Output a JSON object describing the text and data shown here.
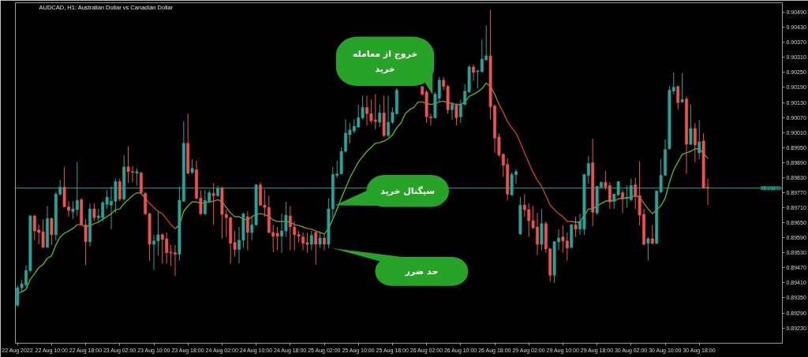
{
  "chart_data": {
    "type": "candlestick",
    "title": "AUDCAD, H1: Australian Dollar vs Canadian Dollar",
    "categories": [
      "22 Aug 2022",
      null,
      null,
      null,
      null,
      null,
      null,
      null,
      "22 Aug 10:00",
      null,
      null,
      null,
      null,
      null,
      null,
      null,
      "22 Aug 18:00",
      null,
      null,
      null,
      null,
      null,
      null,
      null,
      "23 Aug 02:00",
      null,
      null,
      null,
      null,
      null,
      null,
      null,
      "23 Aug 10:00",
      null,
      null,
      null,
      null,
      null,
      null,
      null,
      "23 Aug 18:00",
      null,
      null,
      null,
      null,
      null,
      null,
      null,
      "24 Aug 02:00",
      null,
      null,
      null,
      null,
      null,
      null,
      null,
      "24 Aug 10:00",
      null,
      null,
      null,
      null,
      null,
      null,
      null,
      "24 Aug 18:00",
      null,
      null,
      null,
      null,
      null,
      null,
      null,
      "25 Aug 02:00",
      null,
      null,
      null,
      null,
      null,
      null,
      null,
      "25 Aug 10:00",
      null,
      null,
      null,
      null,
      null,
      null,
      null,
      "25 Aug 18:00",
      null,
      null,
      null,
      null,
      null,
      null,
      null,
      "26 Aug 02:00",
      null,
      null,
      null,
      null,
      null,
      null,
      null,
      "26 Aug 10:00",
      null,
      null,
      null,
      null,
      null,
      null,
      null,
      "26 Aug 18:00",
      null,
      null,
      null,
      null,
      null,
      null,
      null,
      "29 Aug 02:00",
      null,
      null,
      null,
      null,
      null,
      null,
      null,
      "29 Aug 10:00",
      null,
      null,
      null,
      null,
      null,
      null,
      null,
      "29 Aug 18:00",
      null,
      null,
      null,
      null,
      null,
      null,
      null,
      "30 Aug 02:00",
      null,
      null,
      null,
      null,
      null,
      null,
      null,
      "30 Aug 10:00",
      null,
      null,
      null,
      null,
      null,
      null,
      null,
      "30 Aug 18:00",
      null,
      null,
      null,
      null,
      null,
      null,
      null,
      null,
      null,
      null,
      null,
      null,
      null,
      null,
      null,
      null,
      null,
      null,
      null
    ],
    "ohlc": [
      [
        0.89321,
        0.89399,
        0.89315,
        0.8939
      ],
      [
        0.8939,
        0.89421,
        0.89377,
        0.89406
      ],
      [
        0.89402,
        0.8948,
        0.89393,
        0.89459
      ],
      [
        0.89459,
        0.8968,
        0.89452,
        0.89677
      ],
      [
        0.89677,
        0.8968,
        0.8958,
        0.89617
      ],
      [
        0.89621,
        0.89642,
        0.89564,
        0.89611
      ],
      [
        0.89614,
        0.89664,
        0.89549,
        0.89552
      ],
      [
        0.89552,
        0.89717,
        0.89549,
        0.89667
      ],
      [
        0.89667,
        0.8967,
        0.89561,
        0.89602
      ],
      [
        0.89602,
        0.89773,
        0.8958,
        0.89764
      ],
      [
        0.89764,
        0.8982,
        0.89758,
        0.89792
      ],
      [
        0.89792,
        0.89873,
        0.89711,
        0.89714
      ],
      [
        0.89714,
        0.89736,
        0.89674,
        0.89699
      ],
      [
        0.89695,
        0.89736,
        0.89664,
        0.89705
      ],
      [
        0.89702,
        0.89892,
        0.89677,
        0.89739
      ],
      [
        0.89742,
        0.89748,
        0.89639,
        0.89642
      ],
      [
        0.89642,
        0.89664,
        0.8948,
        0.89574
      ],
      [
        0.89574,
        0.89727,
        0.89555,
        0.89705
      ],
      [
        0.89705,
        0.89727,
        0.89658,
        0.8967
      ],
      [
        0.8967,
        0.89705,
        0.89655,
        0.89677
      ],
      [
        0.8967,
        0.89736,
        0.89655,
        0.8973
      ],
      [
        0.89723,
        0.8978,
        0.89705,
        0.89752
      ],
      [
        0.8972,
        0.89795,
        0.89624,
        0.89736
      ],
      [
        0.89736,
        0.89826,
        0.89689,
        0.89814
      ],
      [
        0.89814,
        0.89826,
        0.89736,
        0.89745
      ],
      [
        0.89745,
        0.8992,
        0.89739,
        0.89873
      ],
      [
        0.89873,
        0.89954,
        0.89808,
        0.89854
      ],
      [
        0.89854,
        0.89876,
        0.89811,
        0.89851
      ],
      [
        0.89848,
        0.89867,
        0.89798,
        0.89854
      ],
      [
        0.89848,
        0.89854,
        0.89767,
        0.8977
      ],
      [
        0.89767,
        0.89773,
        0.8968,
        0.89686
      ],
      [
        0.89686,
        0.89689,
        0.89499,
        0.89564
      ],
      [
        0.89564,
        0.89602,
        0.89462,
        0.89577
      ],
      [
        0.89577,
        0.89695,
        0.89518,
        0.89602
      ],
      [
        0.89602,
        0.89608,
        0.89487,
        0.89583
      ],
      [
        0.89586,
        0.89611,
        0.89487,
        0.8953
      ],
      [
        0.89533,
        0.89561,
        0.89477,
        0.8953
      ],
      [
        0.8953,
        0.89561,
        0.89437,
        0.89524
      ],
      [
        0.89524,
        0.89795,
        0.89499,
        0.89739
      ],
      [
        0.89736,
        0.90054,
        0.89733,
        0.89967
      ],
      [
        0.89967,
        0.90085,
        0.89842,
        0.89848
      ],
      [
        0.89851,
        0.89904,
        0.89845,
        0.89867
      ],
      [
        0.89861,
        0.89898,
        0.89742,
        0.89748
      ],
      [
        0.89748,
        0.8978,
        0.8968,
        0.89686
      ],
      [
        0.89686,
        0.8978,
        0.8968,
        0.89739
      ],
      [
        0.89736,
        0.8978,
        0.89727,
        0.8977
      ],
      [
        0.89767,
        0.89808,
        0.89642,
        0.89758
      ],
      [
        0.89758,
        0.89798,
        0.89752,
        0.89786
      ],
      [
        0.89789,
        0.89795,
        0.89586,
        0.89683
      ],
      [
        0.89683,
        0.89702,
        0.89593,
        0.8967
      ],
      [
        0.8967,
        0.89674,
        0.89487,
        0.89568
      ],
      [
        0.89571,
        0.89617,
        0.89515,
        0.89543
      ],
      [
        0.89543,
        0.89633,
        0.89487,
        0.8958
      ],
      [
        0.8958,
        0.89689,
        0.89549,
        0.89686
      ],
      [
        0.89674,
        0.89695,
        0.8954,
        0.89611
      ],
      [
        0.89611,
        0.89674,
        0.8958,
        0.89642
      ],
      [
        0.89642,
        0.89805,
        0.89639,
        0.89801
      ],
      [
        0.89801,
        0.89811,
        0.89717,
        0.8972
      ],
      [
        0.8972,
        0.89783,
        0.89674,
        0.89711
      ],
      [
        0.89711,
        0.89758,
        0.89608,
        0.89611
      ],
      [
        0.89611,
        0.89642,
        0.89533,
        0.89596
      ],
      [
        0.89608,
        0.89633,
        0.8954,
        0.89596
      ],
      [
        0.89596,
        0.89686,
        0.8953,
        0.89617
      ],
      [
        0.89617,
        0.89733,
        0.89593,
        0.8968
      ],
      [
        0.89677,
        0.89717,
        0.8954,
        0.89633
      ],
      [
        0.89633,
        0.89655,
        0.8954,
        0.89602
      ],
      [
        0.89602,
        0.89617,
        0.89571,
        0.89596
      ],
      [
        0.89593,
        0.89611,
        0.8954,
        0.89568
      ],
      [
        0.89571,
        0.89611,
        0.8953,
        0.89564
      ],
      [
        0.89564,
        0.89617,
        0.8954,
        0.89599
      ],
      [
        0.89611,
        0.89617,
        0.89483,
        0.89564
      ],
      [
        0.89564,
        0.89608,
        0.89549,
        0.89589
      ],
      [
        0.89589,
        0.89602,
        0.8954,
        0.89564
      ],
      [
        0.89564,
        0.89748,
        0.89549,
        0.89705
      ],
      [
        0.89705,
        0.89873,
        0.8967,
        0.89842
      ],
      [
        0.89839,
        0.89898,
        0.89829,
        0.89845
      ],
      [
        0.89845,
        0.89951,
        0.89842,
        0.89935
      ],
      [
        0.89935,
        0.90063,
        0.89929,
        0.90007
      ],
      [
        0.90001,
        0.90048,
        0.89967,
        0.9002
      ],
      [
        0.90016,
        0.90063,
        0.90007,
        0.90035
      ],
      [
        0.90032,
        0.90122,
        0.90029,
        0.90069
      ],
      [
        0.90069,
        0.90157,
        0.90063,
        0.9011
      ],
      [
        0.9011,
        0.90157,
        0.90038,
        0.90085
      ],
      [
        0.90085,
        0.90141,
        0.90048,
        0.90057
      ],
      [
        0.9006,
        0.90163,
        0.90023,
        0.90054
      ],
      [
        0.90051,
        0.90122,
        0.90032,
        0.90088
      ],
      [
        0.90088,
        0.90157,
        0.89992,
        0.89998
      ],
      [
        0.89998,
        0.90157,
        0.89992,
        0.90051
      ],
      [
        0.90051,
        0.9011,
        0.90045,
        0.90091
      ],
      [
        0.90085,
        0.90188,
        0.90082,
        0.90179
      ],
      null,
      null,
      null,
      null,
      null,
      [
        0.90194,
        0.90194,
        0.90157,
        0.90163
      ],
      [
        0.90172,
        0.90179,
        0.90048,
        0.90073
      ],
      [
        0.90073,
        0.90085,
        0.90038,
        0.90069
      ],
      [
        0.90069,
        0.90172,
        0.90066,
        0.90163
      ],
      [
        0.90147,
        0.90232,
        0.90132,
        0.90219
      ],
      [
        0.90219,
        0.90232,
        0.90179,
        0.90194
      ],
      [
        0.90194,
        0.902,
        0.90085,
        0.90101
      ],
      [
        0.90101,
        0.90132,
        0.9006,
        0.90122
      ],
      [
        0.90119,
        0.90126,
        0.90038,
        0.90069
      ],
      [
        0.90073,
        0.90141,
        0.90048,
        0.90122
      ],
      [
        0.90122,
        0.90203,
        0.90119,
        0.90175
      ],
      [
        0.90172,
        0.90278,
        0.90169,
        0.90272
      ],
      [
        0.90272,
        0.90281,
        0.90216,
        0.9025
      ],
      [
        0.90253,
        0.9026,
        0.90185,
        0.90256
      ],
      [
        0.90253,
        0.90381,
        0.9025,
        0.90303
      ],
      [
        0.903,
        0.90437,
        0.90297,
        0.90316
      ],
      [
        0.90316,
        0.905,
        0.90063,
        0.90113
      ],
      [
        0.90116,
        0.90122,
        0.89929,
        0.89988
      ],
      [
        0.89992,
        0.90007,
        0.89914,
        0.8992
      ],
      [
        0.89923,
        0.89926,
        0.89833,
        0.89879
      ],
      [
        0.89882,
        0.89907,
        0.89739,
        0.89764
      ],
      [
        0.89761,
        0.89851,
        0.89758,
        0.89842
      ],
      [
        0.89842,
        0.89864,
        0.89805,
        0.89854
      ],
      [
        0.89605,
        0.89752,
        0.89602,
        0.8972
      ],
      [
        0.8972,
        0.89764,
        0.89674,
        0.89702
      ],
      [
        0.89702,
        0.89727,
        0.89593,
        0.89658
      ],
      [
        0.89658,
        0.89717,
        0.89624,
        0.8963
      ],
      [
        0.89633,
        0.89689,
        0.89521,
        0.89564
      ],
      [
        0.89564,
        0.89705,
        0.8954,
        0.89646
      ],
      [
        0.89646,
        0.89655,
        0.8953,
        0.89546
      ],
      [
        0.89546,
        0.89549,
        0.89415,
        0.8944
      ],
      [
        0.8944,
        0.89577,
        0.89409,
        0.89574
      ],
      [
        0.89574,
        0.89624,
        0.8954,
        0.89589
      ],
      [
        0.89593,
        0.89639,
        0.8953,
        0.89577
      ],
      [
        0.89577,
        0.89611,
        0.89499,
        0.89549
      ],
      [
        0.89552,
        0.89646,
        0.89546,
        0.89642
      ],
      [
        0.89642,
        0.89674,
        0.89593,
        0.89624
      ],
      [
        0.89624,
        0.89686,
        0.89602,
        0.89655
      ],
      [
        0.89624,
        0.89845,
        0.89602,
        0.89842
      ],
      [
        0.89839,
        0.89917,
        0.89805,
        0.89886
      ],
      [
        0.89889,
        0.89985,
        0.89636,
        0.89692
      ],
      [
        0.89689,
        0.89798,
        0.8968,
        0.89795
      ],
      [
        0.89792,
        0.89814,
        0.89789,
        0.89811
      ],
      [
        0.89811,
        0.89857,
        0.8978,
        0.89792
      ],
      [
        0.89798,
        0.89811,
        0.89705,
        0.89733
      ],
      [
        0.89736,
        0.89767,
        0.89705,
        0.89764
      ],
      [
        0.89761,
        0.89817,
        0.89758,
        0.89814
      ],
      [
        0.8977,
        0.8978,
        0.89689,
        0.89745
      ],
      [
        0.89748,
        0.89798,
        0.89711,
        0.89752
      ],
      [
        0.89742,
        0.89826,
        0.89736,
        0.89798
      ],
      [
        0.89801,
        0.89829,
        0.89705,
        0.89755
      ],
      [
        0.89758,
        0.89895,
        0.89639,
        0.8968
      ],
      [
        0.89683,
        0.89705,
        0.89561,
        0.89564
      ],
      [
        0.89568,
        0.89593,
        0.89499,
        0.89586
      ],
      [
        0.89586,
        0.89642,
        0.89564,
        0.89568
      ],
      [
        0.89568,
        0.8978,
        0.89564,
        0.89776
      ],
      [
        0.89773,
        0.89904,
        0.89767,
        0.89839
      ],
      [
        0.89839,
        0.89982,
        0.89836,
        0.89942
      ],
      [
        0.89945,
        0.90197,
        0.89942,
        0.90179
      ],
      [
        0.90175,
        0.9025,
        0.90163,
        0.90191
      ],
      [
        0.90194,
        0.90197,
        0.90101,
        0.90129
      ],
      [
        0.90132,
        0.90247,
        0.90129,
        0.90141
      ],
      [
        0.90144,
        0.90154,
        0.89845,
        0.89963
      ],
      [
        0.89963,
        0.90122,
        0.8996,
        0.90026
      ],
      [
        0.90026,
        0.90048,
        0.89892,
        0.8996
      ],
      [
        0.89929,
        0.9006,
        0.89904,
        0.89973
      ],
      [
        0.89976,
        0.90007,
        0.89786,
        0.89789
      ],
      [
        0.89792,
        0.89826,
        0.8972,
        0.89788
      ],
      null,
      null,
      null,
      null,
      null,
      null,
      null,
      null,
      null,
      null,
      null,
      null,
      null,
      null,
      null,
      null,
      null
    ],
    "colors": [
      "#26a69a",
      "#26a69a",
      "#26a69a",
      "#26a69a",
      "#ef5350",
      "#ef5350",
      "#ef5350",
      "#26a69a",
      "#ef5350",
      "#26a69a",
      "#26a69a",
      "#ef5350",
      "#ef5350",
      "#26a69a",
      "#26a69a",
      "#ef5350",
      "#ef5350",
      "#26a69a",
      "#ef5350",
      "#26a69a",
      "#26a69a",
      "#26a69a",
      "#26a69a",
      "#26a69a",
      "#ef5350",
      "#26a69a",
      "#ef5350",
      "#ef5350",
      "#26a69a",
      "#ef5350",
      "#ef5350",
      "#ef5350",
      "#26a69a",
      "#26a69a",
      "#ef5350",
      "#ef5350",
      "#ef5350",
      "#ef5350",
      "#26a69a",
      "#26a69a",
      "#ef5350",
      "#26a69a",
      "#ef5350",
      "#ef5350",
      "#26a69a",
      "#26a69a",
      "#ef5350",
      "#26a69a",
      "#ef5350",
      "#ef5350",
      "#ef5350",
      "#ef5350",
      "#26a69a",
      "#26a69a",
      "#ef5350",
      "#26a69a",
      "#26a69a",
      "#ef5350",
      "#ef5350",
      "#ef5350",
      "#ef5350",
      "#ef5350",
      "#26a69a",
      "#26a69a",
      "#ef5350",
      "#ef5350",
      "#ef5350",
      "#ef5350",
      "#ef5350",
      "#26a69a",
      "#ef5350",
      "#26a69a",
      "#ef5350",
      "#26a69a",
      "#26a69a",
      "#26a69a",
      "#26a69a",
      "#26a69a",
      "#26a69a",
      "#26a69a",
      "#26a69a",
      "#26a69a",
      "#ef5350",
      "#ef5350",
      "#ef5350",
      "#26a69a",
      "#ef5350",
      "#26a69a",
      "#26a69a",
      "#26a69a",
      null,
      null,
      null,
      null,
      null,
      "#ef5350",
      "#ef5350",
      "#ef5350",
      "#26a69a",
      "#26a69a",
      "#ef5350",
      "#ef5350",
      "#26a69a",
      "#ef5350",
      "#26a69a",
      "#26a69a",
      "#26a69a",
      "#ef5350",
      "#26a69a",
      "#26a69a",
      "#26a69a",
      "#ef5350",
      "#ef5350",
      "#ef5350",
      "#ef5350",
      "#ef5350",
      "#26a69a",
      "#26a69a",
      "#26a69a",
      "#ef5350",
      "#ef5350",
      "#ef5350",
      "#ef5350",
      "#26a69a",
      "#ef5350",
      "#ef5350",
      "#26a69a",
      "#26a69a",
      "#ef5350",
      "#ef5350",
      "#26a69a",
      "#ef5350",
      "#26a69a",
      "#26a69a",
      "#26a69a",
      "#ef5350",
      "#26a69a",
      "#26a69a",
      "#ef5350",
      "#ef5350",
      "#26a69a",
      "#26a69a",
      "#ef5350",
      "#26a69a",
      "#26a69a",
      "#ef5350",
      "#ef5350",
      "#ef5350",
      "#26a69a",
      "#ef5350",
      "#26a69a",
      "#26a69a",
      "#26a69a",
      "#26a69a",
      "#26a69a",
      "#ef5350",
      "#26a69a",
      "#ef5350",
      "#26a69a",
      "#ef5350",
      "#26a69a",
      "#ef5350",
      "#ef5350",
      null,
      null,
      null,
      null,
      null,
      null,
      null,
      null,
      null,
      null,
      null,
      null,
      null,
      null,
      null,
      null,
      null
    ],
    "series": [
      {
        "type": "line",
        "color": "#52b41a",
        "values": [
          null,
          0.89374,
          0.89384,
          0.89424,
          0.89446,
          0.89471,
          0.89483,
          0.89508,
          0.89518,
          0.89561,
          0.89593,
          0.89608,
          0.89617,
          0.89627,
          null,
          null,
          null,
          null,
          null,
          0.89652,
          0.89664,
          0.89674,
          0.89686,
          0.89702,
          0.89705,
          0.89727,
          0.89742,
          0.89758,
          null,
          null,
          null,
          null,
          null,
          null,
          null,
          null,
          null,
          0.89627,
          0.89642,
          0.89695,
          0.89717,
          0.89733,
          null,
          null,
          null,
          null,
          null,
          null,
          null,
          null,
          null,
          null,
          null,
          null,
          null,
          null,
          null,
          null,
          null,
          null,
          null,
          null,
          null,
          null,
          null,
          null,
          null,
          null,
          null,
          null,
          null,
          null,
          0.89605,
          0.89627,
          0.89664,
          0.89705,
          0.89748,
          0.89789,
          0.89829,
          0.89861,
          0.89892,
          0.89914,
          0.89935,
          0.89951,
          0.89967,
          0.8997,
          0.89976,
          0.89985,
          0.90001,
          0.90029,
          0.90048,
          0.90085,
          0.90101,
          0.9011,
          null,
          null,
          null,
          null,
          null,
          null,
          null,
          null,
          null,
          null,
          0.90122,
          0.90132,
          0.90154,
          0.90163,
          0.90172,
          0.90185,
          0.90207,
          null,
          null,
          null,
          null,
          null,
          null,
          null,
          null,
          null,
          null,
          null,
          null,
          null,
          null,
          null,
          null,
          null,
          null,
          null,
          null,
          null,
          null,
          0.8968,
          0.89705,
          0.89705,
          0.89717,
          0.89727,
          0.89736,
          0.89739,
          0.89736,
          0.89745,
          0.89748,
          0.89748,
          0.89752,
          0.89758,
          null,
          null,
          null,
          null,
          0.89702,
          0.89717,
          0.89748,
          0.89811,
          0.89861,
          0.89892,
          0.89923,
          0.89929,
          0.89935,
          0.89945,
          null,
          null,
          null,
          null,
          null,
          null,
          null,
          null,
          null,
          null,
          null,
          null,
          null,
          null,
          null,
          null,
          null,
          null,
          null,
          null
        ]
      },
      {
        "type": "line",
        "color": "#8c8a14",
        "values": [
          0.89368,
          0.89374,
          null,
          null,
          null,
          null,
          null,
          null,
          null,
          null,
          null,
          null,
          null,
          0.89627,
          0.89642,
          0.89642,
          0.89633,
          0.89639,
          0.89646,
          0.89652,
          null,
          null,
          null,
          null,
          null,
          null,
          null,
          0.89758,
          0.8977,
          0.89767,
          0.89748,
          null,
          null,
          null,
          null,
          null,
          null,
          null,
          null,
          null,
          null,
          0.89733,
          0.89733,
          0.89727,
          0.8973,
          0.89733,
          0.89736,
          0.89742,
          0.89733,
          0.89711,
          0.89689,
          0.89674,
          0.89674,
          0.89664,
          0.89661,
          0.89674,
          0.89683,
          0.89686,
          0.89683,
          0.89674,
          0.89661,
          0.89655,
          0.89655,
          0.89655,
          0.89652,
          0.89642,
          0.89639,
          0.89633,
          0.89627,
          0.89624,
          0.89617,
          0.89611,
          0.89605,
          null,
          null,
          null,
          null,
          null,
          null,
          null,
          null,
          null,
          null,
          null,
          null,
          null,
          null,
          null,
          null,
          null,
          null,
          null,
          null,
          0.9011,
          0.90132,
          0.90132,
          0.90126,
          0.90122,
          0.90126,
          0.90132,
          0.90135,
          0.90129,
          0.90126,
          0.90122,
          0.90122,
          null,
          null,
          null,
          null,
          null,
          0.90207,
          0.90194,
          0.90163,
          0.90122,
          null,
          null,
          null,
          null,
          null,
          null,
          null,
          null,
          null,
          null,
          null,
          null,
          null,
          null,
          null,
          null,
          0.89655,
          0.89652,
          0.89652,
          0.8968,
          null,
          null,
          null,
          null,
          null,
          null,
          null,
          null,
          null,
          null,
          null,
          0.89758,
          0.89752,
          0.89727,
          0.89705,
          0.89686,
          0.89702,
          null,
          null,
          null,
          null,
          null,
          null,
          null,
          null,
          0.89945,
          0.89945,
          0.89926,
          0.89907,
          null,
          null,
          null,
          null,
          null,
          null,
          null,
          null,
          null,
          null,
          null,
          null,
          null,
          null,
          null,
          null,
          null
        ]
      },
      {
        "type": "line",
        "color": "#c4401a",
        "values": [
          null,
          null,
          null,
          null,
          null,
          null,
          null,
          null,
          null,
          null,
          null,
          null,
          null,
          null,
          null,
          null,
          null,
          null,
          null,
          null,
          null,
          null,
          null,
          null,
          null,
          null,
          null,
          null,
          null,
          null,
          0.89748,
          0.89727,
          0.89711,
          0.89695,
          0.89686,
          0.89664,
          0.89642,
          0.89627,
          null,
          null,
          null,
          null,
          null,
          null,
          null,
          null,
          null,
          null,
          null,
          null,
          null,
          null,
          null,
          null,
          null,
          null,
          null,
          null,
          null,
          null,
          null,
          null,
          null,
          null,
          null,
          null,
          null,
          null,
          null,
          null,
          null,
          null,
          null,
          null,
          null,
          null,
          null,
          null,
          null,
          null,
          null,
          null,
          null,
          null,
          null,
          null,
          null,
          null,
          null,
          null,
          null,
          null,
          null,
          null,
          null,
          null,
          null,
          null,
          null,
          null,
          null,
          null,
          null,
          null,
          null,
          null,
          null,
          null,
          null,
          null,
          null,
          null,
          null,
          0.90122,
          0.90091,
          0.90054,
          0.90029,
          0.90007,
          0.8997,
          0.89929,
          0.89889,
          0.89851,
          0.8982,
          0.89795,
          0.89758,
          0.8972,
          0.89702,
          0.89686,
          0.89674,
          0.89655,
          0.89655,
          null,
          null,
          null,
          null,
          null,
          null,
          null,
          null,
          null,
          null,
          null,
          null,
          null,
          null,
          null,
          null,
          null,
          null,
          null,
          null,
          null,
          null,
          null,
          null,
          null,
          null,
          null,
          null,
          null,
          null,
          null,
          null,
          null,
          null,
          null,
          null,
          null,
          null,
          null,
          null,
          null,
          null,
          null,
          null,
          null,
          null,
          null,
          null,
          null
        ]
      }
    ],
    "ylim": [
      0.89169,
      0.90528
    ],
    "yticks": [
      {
        "value": 0.9049,
        "label": "0.90490"
      },
      {
        "value": 0.9043,
        "label": "0.90430"
      },
      {
        "value": 0.9037,
        "label": "0.90370"
      },
      {
        "value": 0.9031,
        "label": "0.90310"
      },
      {
        "value": 0.9025,
        "label": "0.90250"
      },
      {
        "value": 0.9019,
        "label": "0.90190"
      },
      {
        "value": 0.9013,
        "label": "0.90130"
      },
      {
        "value": 0.9007,
        "label": "0.90070"
      },
      {
        "value": 0.9001,
        "label": "0.90010"
      },
      {
        "value": 0.8995,
        "label": "0.89950"
      },
      {
        "value": 0.8989,
        "label": "0.89890"
      },
      {
        "value": 0.8983,
        "label": "0.89830"
      },
      {
        "value": 0.8977,
        "label": "0.89770"
      },
      {
        "value": 0.8971,
        "label": "0.89710"
      },
      {
        "value": 0.8965,
        "label": "0.89650"
      },
      {
        "value": 0.8959,
        "label": "0.89590"
      },
      {
        "value": 0.8953,
        "label": "0.89530"
      },
      {
        "value": 0.8947,
        "label": "0.89470"
      },
      {
        "value": 0.8941,
        "label": "0.89410"
      },
      {
        "value": 0.8935,
        "label": "0.89350"
      },
      {
        "value": 0.8929,
        "label": "0.89290"
      },
      {
        "value": 0.8923,
        "label": "0.89230"
      }
    ],
    "ref_lines": [
      {
        "axis": "y",
        "value": 0.89788,
        "label": "0.89788",
        "color": "#26a69a"
      }
    ],
    "annotations": [
      "خروج از معامله\nخرید",
      "سیگنال خرید",
      "حد ضرر"
    ]
  }
}
